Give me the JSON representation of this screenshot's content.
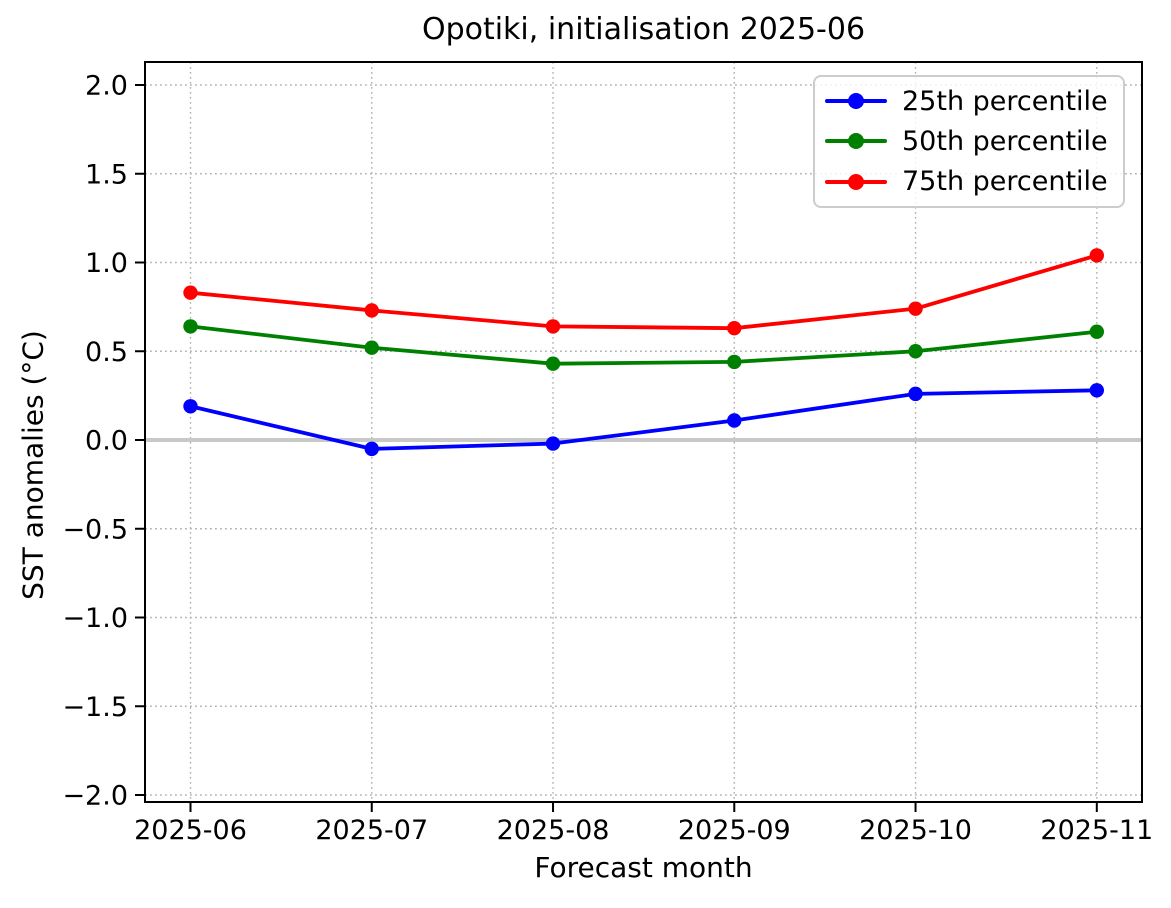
{
  "chart_data": {
    "type": "line",
    "title": "Opotiki, initialisation 2025-06",
    "xlabel": "Forecast month",
    "ylabel": "SST anomalies (°C)",
    "categories": [
      "2025-06",
      "2025-07",
      "2025-08",
      "2025-09",
      "2025-10",
      "2025-11"
    ],
    "series": [
      {
        "name": "25th percentile",
        "color": "#0000ff",
        "values": [
          0.19,
          -0.05,
          -0.02,
          0.11,
          0.26,
          0.28
        ]
      },
      {
        "name": "50th percentile",
        "color": "#008000",
        "values": [
          0.64,
          0.52,
          0.43,
          0.44,
          0.5,
          0.61
        ]
      },
      {
        "name": "75th percentile",
        "color": "#ff0000",
        "values": [
          0.83,
          0.73,
          0.64,
          0.63,
          0.74,
          1.04
        ]
      }
    ],
    "ylim": [
      -2.0,
      2.0
    ],
    "yticks": [
      2.0,
      1.5,
      1.0,
      0.5,
      0.0,
      -0.5,
      -1.0,
      -1.5,
      -2.0
    ],
    "ytick_labels": [
      "2.0",
      "1.5",
      "1.0",
      "0.5",
      "0.0",
      "−0.5",
      "−1.0",
      "−1.5",
      "−2.0"
    ],
    "grid": true,
    "grid_style": "dotted",
    "grid_color": "#b3b3b3",
    "zero_line": {
      "value": 0.0,
      "color": "#c8c8c8"
    },
    "legend": {
      "position": "upper right"
    },
    "marker": "circle"
  }
}
